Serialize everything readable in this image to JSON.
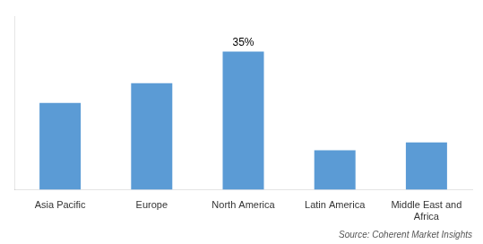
{
  "chart_data": {
    "type": "bar",
    "categories": [
      "Asia Pacific",
      "Europe",
      "North America",
      "Latin America",
      "Middle East and\nAfrica"
    ],
    "values": [
      22,
      27,
      35,
      10,
      12
    ],
    "color": "#5B9BD5",
    "ylim": [
      0,
      44
    ],
    "tick_labels": "x",
    "grid": false,
    "annotations": [
      {
        "category": "North America",
        "text": "35%"
      }
    ],
    "source": "Source: Coherent Market Insights"
  }
}
